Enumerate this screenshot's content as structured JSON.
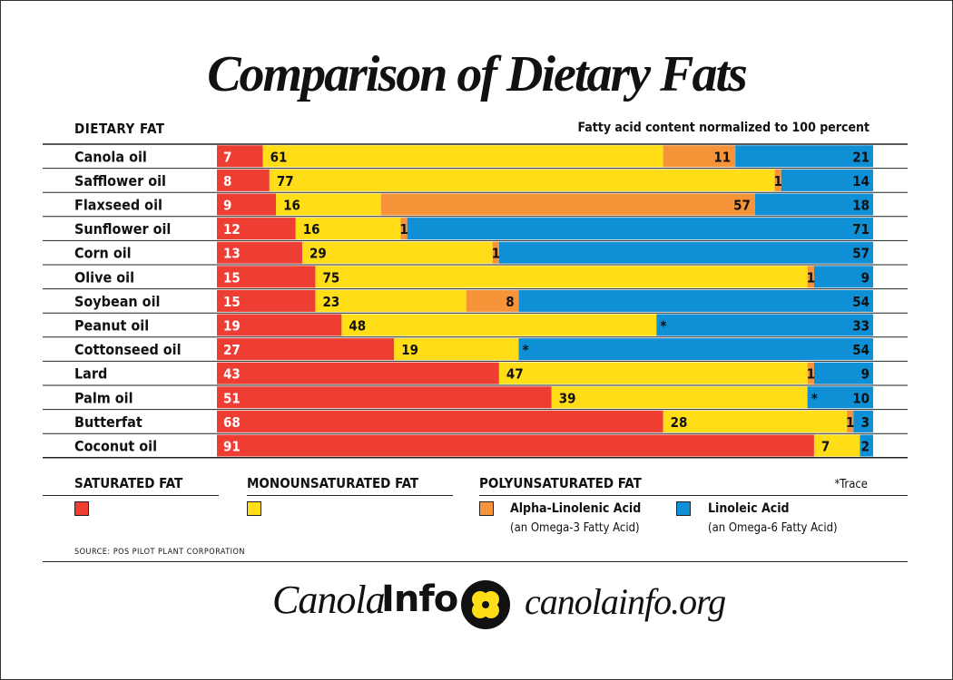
{
  "title": "Comparison of Dietary Fats",
  "header_left": "DIETARY FAT",
  "header_right": "Fatty acid content normalized to 100 percent",
  "chart_data": {
    "type": "bar",
    "stacked": true,
    "orientation": "horizontal",
    "xlim": [
      0,
      100
    ],
    "categories": [
      "Canola oil",
      "Safflower oil",
      "Flaxseed oil",
      "Sunflower oil",
      "Corn oil",
      "Olive oil",
      "Soybean oil",
      "Peanut oil",
      "Cottonseed oil",
      "Lard",
      "Palm oil",
      "Butterfat",
      "Coconut oil"
    ],
    "series": [
      {
        "name": "SATURATED FAT",
        "color": "#ee3d33",
        "values": [
          7,
          8,
          9,
          12,
          13,
          15,
          15,
          19,
          27,
          43,
          51,
          68,
          91
        ]
      },
      {
        "name": "MONOUNSATURATED FAT",
        "color": "#ffdd17",
        "values": [
          61,
          77,
          16,
          16,
          29,
          75,
          23,
          48,
          19,
          47,
          39,
          28,
          7
        ]
      },
      {
        "name": "Alpha-Linolenic Acid",
        "color": "#f7943a",
        "values": [
          11,
          1,
          57,
          1,
          1,
          1,
          8,
          0,
          0,
          1,
          0,
          1,
          0
        ]
      },
      {
        "name": "Linoleic Acid",
        "color": "#0f8fd6",
        "values": [
          21,
          14,
          18,
          71,
          57,
          9,
          54,
          33,
          54,
          9,
          10,
          3,
          2
        ]
      }
    ],
    "value_labels": [
      [
        "7",
        "61",
        "11",
        "21"
      ],
      [
        "8",
        "77",
        "1",
        "14"
      ],
      [
        "9",
        "16",
        "57",
        "18"
      ],
      [
        "12",
        "16",
        "1",
        "71"
      ],
      [
        "13",
        "29",
        "1",
        "57"
      ],
      [
        "15",
        "75",
        "1",
        "9"
      ],
      [
        "15",
        "23",
        "8",
        "54"
      ],
      [
        "19",
        "48",
        "*",
        "33"
      ],
      [
        "27",
        "19",
        "*",
        "54"
      ],
      [
        "43",
        "47",
        "1",
        "9"
      ],
      [
        "51",
        "39",
        "*",
        "10"
      ],
      [
        "68",
        "28",
        "1",
        "3"
      ],
      [
        "91",
        "7",
        "",
        "2"
      ]
    ]
  },
  "legend": {
    "saturated": "SATURATED FAT",
    "monounsaturated": "MONOUNSATURATED FAT",
    "polyunsaturated": "POLYUNSATURATED FAT",
    "trace": "*Trace",
    "ala_label": "Alpha-Linolenic Acid",
    "ala_sub": "(an Omega-3 Fatty Acid)",
    "la_label": "Linoleic Acid",
    "la_sub": "(an Omega-6 Fatty Acid)"
  },
  "source": "SOURCE: POS PILOT PLANT CORPORATION",
  "footer": {
    "brand_italic": "Canola",
    "brand_bold": "Info",
    "url": "canolainfo.org"
  },
  "colors": {
    "saturated": "#ee3d33",
    "monounsaturated": "#ffdd17",
    "ala": "#f7943a",
    "la": "#0f8fd6",
    "logo_yellow": "#ffdd17"
  }
}
